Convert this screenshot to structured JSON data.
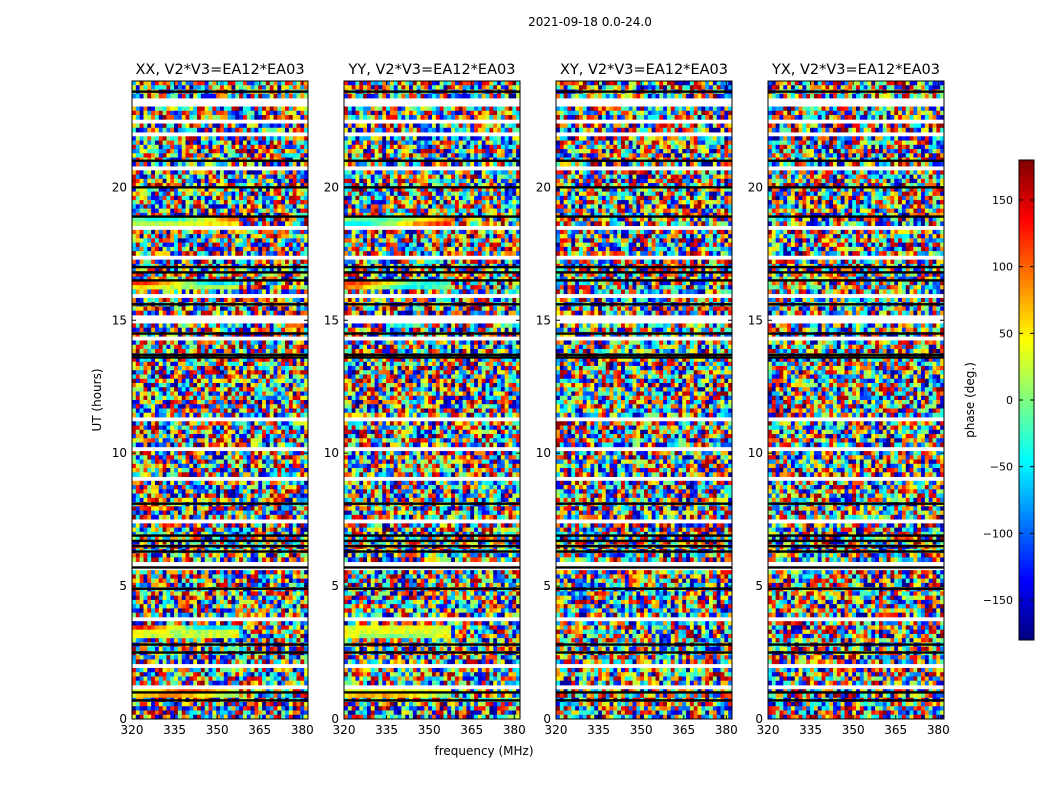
{
  "chart_data": {
    "type": "heatmap",
    "suptitle": "2021-09-18 0.0-24.0",
    "xlabel": "frequency (MHz)",
    "ylabel": "UT (hours)",
    "xlim": [
      320,
      382
    ],
    "ylim": [
      0,
      24
    ],
    "xticks": [
      "320",
      "335",
      "350",
      "365",
      "380"
    ],
    "yticks": [
      "0",
      "5",
      "10",
      "15",
      "20"
    ],
    "panels": [
      {
        "title": "XX, V2*V3=EA12*EA03"
      },
      {
        "title": "YY, V2*V3=EA12*EA03"
      },
      {
        "title": "XY, V2*V3=EA12*EA03"
      },
      {
        "title": "YX, V2*V3=EA12*EA03"
      }
    ],
    "colorbar": {
      "label": "phase (deg.)",
      "range": [
        -180,
        180
      ],
      "ticks": [
        "150",
        "100",
        "50",
        "0",
        "−50",
        "−100",
        "−150"
      ],
      "colormap": "jet"
    }
  }
}
